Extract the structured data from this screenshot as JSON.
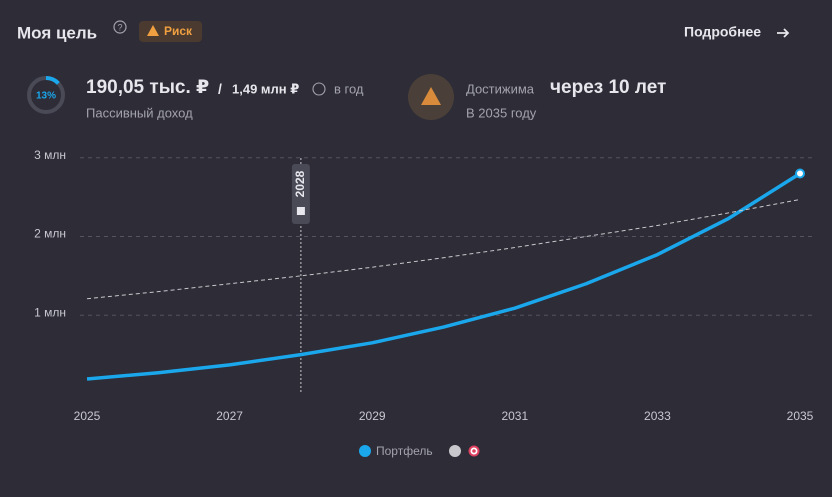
{
  "header": {
    "title": "Моя цель",
    "badge": "Риск",
    "link": "Подробнее"
  },
  "stats": {
    "progress": {
      "value": 13,
      "label": "13%"
    },
    "income": "190,05 тыс. ₽",
    "separator": "/",
    "target": "1,49 млн ₽",
    "period": "в год",
    "income_caption": "Пассивный доход",
    "reach_prefix": "Достижима",
    "reach_time": "через 10 лет",
    "reach_caption": "В 2035 году"
  },
  "chart_data": {
    "type": "line",
    "x": [
      2025,
      2026,
      2027,
      2028,
      2029,
      2030,
      2031,
      2032,
      2033,
      2034,
      2035
    ],
    "series": [
      {
        "name": "Портфель",
        "color": "#1aa7ec",
        "values": [
          190000,
          270000,
          370000,
          500000,
          650000,
          850000,
          1090000,
          1400000,
          1770000,
          2230000,
          2800000
        ]
      },
      {
        "color": "#c8c8cc",
        "values": [
          1210000,
          1300000,
          1400000,
          1500000,
          1610000,
          1730000,
          1860000,
          2000000,
          2140000,
          2300000,
          2470000
        ]
      }
    ],
    "xlim": [
      2025,
      2035
    ],
    "xticks": [
      2025,
      2027,
      2029,
      2031,
      2033,
      2035
    ],
    "ylim": [
      0,
      3200000
    ],
    "yticks": [
      {
        "value": 1000000,
        "label": "1 млн"
      },
      {
        "value": 2000000,
        "label": "2 млн"
      },
      {
        "value": 3000000,
        "label": "3 млн"
      }
    ],
    "grid": true,
    "marker_x": 2028
  }
}
